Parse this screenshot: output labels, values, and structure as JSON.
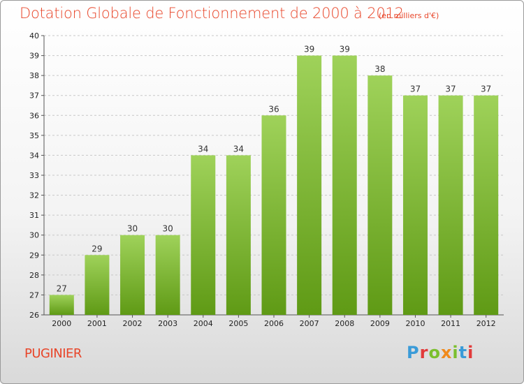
{
  "title": "Dotation Globale de Fonctionnement de 2000 à 2012",
  "unit_note": "(en milliers d'€)",
  "commune": "PUGINIER",
  "logo": {
    "text": "Proxiti",
    "colors": [
      "#3a9bd8",
      "#f08a1c",
      "#7bbf2e",
      "#e23a3a"
    ]
  },
  "colors": {
    "title": "#e8462a",
    "bar_top": "#9fd25a",
    "bar_bottom": "#5f9a15",
    "grid": "#c8c8c8"
  },
  "chart_data": {
    "type": "bar",
    "title": "Dotation Globale de Fonctionnement de 2000 à 2012",
    "subtitle": "(en milliers d'€)",
    "xlabel": "",
    "ylabel": "",
    "categories": [
      "2000",
      "2001",
      "2002",
      "2003",
      "2004",
      "2005",
      "2006",
      "2007",
      "2008",
      "2009",
      "2010",
      "2011",
      "2012"
    ],
    "values": [
      27,
      29,
      30,
      30,
      34,
      34,
      36,
      39,
      39,
      38,
      37,
      37,
      37
    ],
    "ylim": [
      26,
      40
    ],
    "yticks": [
      26,
      27,
      28,
      29,
      30,
      31,
      32,
      33,
      34,
      35,
      36,
      37,
      38,
      39,
      40
    ],
    "grid": "horizontal dashed",
    "data_labels": true
  }
}
